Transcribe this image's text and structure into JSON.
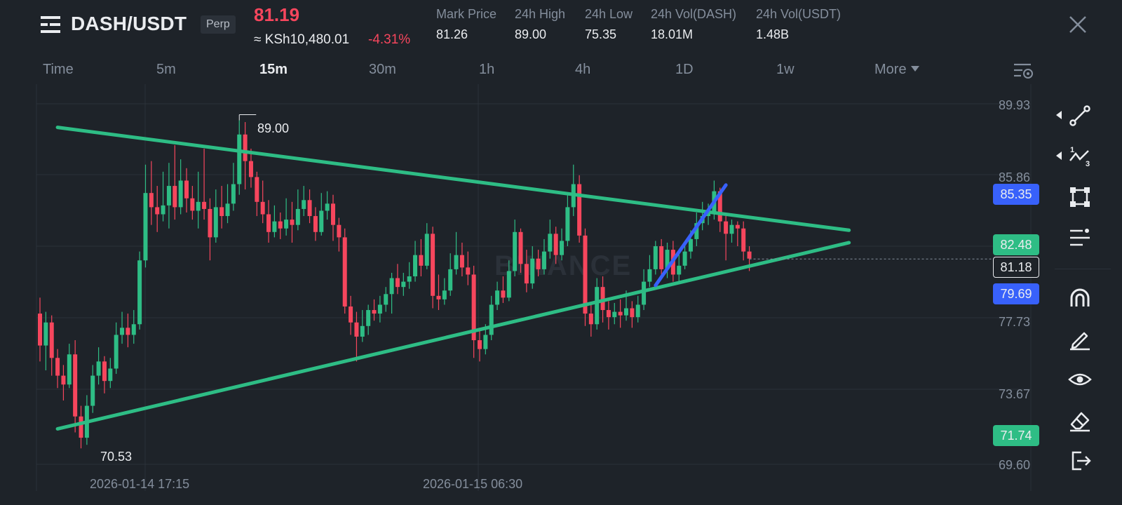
{
  "header": {
    "pair": "DASH/USDT",
    "contract_type": "Perp",
    "last_price": "81.19",
    "fiat_price": "≈ KSh10,480.01",
    "change_pct": "-4.31%",
    "stats": [
      {
        "label": "Mark Price",
        "value": "81.26"
      },
      {
        "label": "24h High",
        "value": "89.00"
      },
      {
        "label": "24h Low",
        "value": "75.35"
      },
      {
        "label": "24h Vol(DASH)",
        "value": "18.01M"
      },
      {
        "label": "24h Vol(USDT)",
        "value": "1.48B"
      }
    ]
  },
  "intervals": {
    "items": [
      "Time",
      "5m",
      "15m",
      "30m",
      "1h",
      "4h",
      "1D",
      "1w",
      "More"
    ],
    "active": "15m"
  },
  "watermark": "BINANCE",
  "colors": {
    "up": "#2ebd85",
    "down": "#f6465d",
    "accent_blue": "#3861fb",
    "background": "#1e2329",
    "grid": "#2b3139"
  },
  "price_axis": {
    "labels": [
      "89.93",
      "85.86",
      "77.73",
      "73.67",
      "69.60"
    ],
    "tags": {
      "blue_top": "85.35",
      "green_top": "82.48",
      "current": "81.18",
      "blue_bottom": "79.69",
      "green_bottom": "71.74"
    }
  },
  "time_axis": {
    "labels": [
      "2026-01-14 17:15",
      "2026-01-15 06:30"
    ]
  },
  "extremes": {
    "high": "89.00",
    "low": "70.53"
  },
  "chart_data": {
    "type": "candlestick",
    "title": "",
    "interval": "15m",
    "ylim": [
      69.0,
      90.5
    ],
    "high": 89.0,
    "low": 70.53,
    "current": 81.18,
    "candles": [
      [
        78.1,
        76.3,
        79.0,
        75.4
      ],
      [
        76.3,
        77.6,
        78.2,
        74.9
      ],
      [
        77.6,
        75.6,
        78.0,
        74.6
      ],
      [
        75.6,
        74.6,
        76.1,
        73.9
      ],
      [
        74.6,
        74.1,
        75.2,
        73.2
      ],
      [
        74.1,
        75.8,
        76.4,
        73.9
      ],
      [
        75.8,
        72.3,
        76.6,
        71.4
      ],
      [
        72.3,
        71.1,
        72.9,
        70.5
      ],
      [
        71.1,
        72.9,
        73.5,
        70.7
      ],
      [
        72.9,
        74.6,
        75.2,
        72.5
      ],
      [
        74.6,
        75.4,
        76.2,
        74.1
      ],
      [
        75.4,
        74.3,
        75.7,
        73.6
      ],
      [
        74.3,
        75.0,
        75.6,
        73.9
      ],
      [
        75.0,
        76.9,
        77.6,
        74.7
      ],
      [
        76.9,
        77.3,
        78.2,
        76.4
      ],
      [
        77.3,
        76.9,
        78.1,
        76.2
      ],
      [
        76.9,
        77.5,
        78.3,
        76.4
      ],
      [
        77.5,
        81.1,
        81.6,
        77.2
      ],
      [
        81.1,
        84.9,
        86.5,
        80.7
      ],
      [
        84.9,
        84.1,
        86.7,
        83.1
      ],
      [
        84.1,
        83.7,
        85.3,
        82.7
      ],
      [
        83.7,
        84.2,
        86.1,
        83.3
      ],
      [
        84.2,
        85.3,
        86.6,
        82.9
      ],
      [
        85.3,
        84.1,
        87.6,
        83.4
      ],
      [
        84.1,
        85.6,
        86.8,
        83.7
      ],
      [
        85.6,
        84.6,
        86.3,
        83.8
      ],
      [
        84.6,
        83.9,
        85.3,
        83.4
      ],
      [
        83.9,
        84.4,
        86.1,
        82.9
      ],
      [
        84.4,
        84.0,
        87.4,
        83.4
      ],
      [
        84.0,
        82.4,
        84.6,
        81.1
      ],
      [
        82.4,
        84.1,
        85.1,
        82.1
      ],
      [
        84.1,
        83.6,
        85.3,
        82.9
      ],
      [
        83.6,
        84.3,
        85.4,
        83.2
      ],
      [
        84.3,
        85.4,
        86.6,
        83.9
      ],
      [
        85.4,
        88.2,
        89.0,
        84.8
      ],
      [
        88.2,
        86.7,
        88.9,
        85.1
      ],
      [
        86.7,
        85.8,
        87.4,
        85.2
      ],
      [
        85.8,
        84.4,
        86.1,
        83.6
      ],
      [
        84.4,
        83.7,
        85.6,
        83.2
      ],
      [
        83.7,
        82.7,
        84.5,
        82.1
      ],
      [
        82.7,
        83.3,
        84.2,
        82.4
      ],
      [
        83.3,
        82.9,
        83.8,
        82.3
      ],
      [
        82.9,
        83.4,
        84.6,
        82.5
      ],
      [
        83.4,
        83.1,
        84.4,
        82.1
      ],
      [
        83.1,
        84.0,
        85.1,
        82.8
      ],
      [
        84.0,
        84.5,
        85.3,
        83.6
      ],
      [
        84.5,
        83.6,
        85.1,
        83.2
      ],
      [
        83.6,
        82.7,
        84.1,
        82.2
      ],
      [
        82.7,
        83.9,
        84.9,
        82.5
      ],
      [
        83.9,
        84.3,
        85.0,
        83.4
      ],
      [
        84.3,
        83.1,
        84.8,
        82.2
      ],
      [
        83.1,
        82.4,
        83.5,
        81.6
      ],
      [
        82.4,
        78.5,
        82.9,
        78.1
      ],
      [
        78.5,
        77.6,
        79.1,
        76.9
      ],
      [
        77.6,
        76.8,
        78.2,
        75.4
      ],
      [
        76.8,
        77.4,
        78.3,
        76.5
      ],
      [
        77.4,
        78.3,
        78.6,
        76.9
      ],
      [
        78.3,
        78.1,
        78.9,
        77.7
      ],
      [
        78.1,
        78.6,
        79.1,
        77.6
      ],
      [
        78.6,
        79.2,
        79.6,
        78.2
      ],
      [
        79.2,
        80.1,
        80.4,
        78.1
      ],
      [
        80.1,
        79.6,
        80.9,
        79.2
      ],
      [
        79.6,
        79.9,
        80.4,
        79.1
      ],
      [
        79.9,
        80.2,
        81.0,
        79.5
      ],
      [
        80.2,
        81.4,
        82.2,
        79.9
      ],
      [
        81.4,
        80.8,
        82.3,
        80.2
      ],
      [
        80.8,
        82.6,
        83.2,
        80.6
      ],
      [
        82.6,
        79.1,
        83.0,
        78.4
      ],
      [
        79.1,
        78.9,
        80.3,
        78.3
      ],
      [
        78.9,
        79.4,
        80.1,
        78.6
      ],
      [
        79.4,
        80.6,
        81.5,
        79.1
      ],
      [
        80.6,
        81.4,
        82.7,
        80.3
      ],
      [
        81.4,
        80.7,
        82.1,
        80.2
      ],
      [
        80.7,
        80.3,
        81.6,
        79.7
      ],
      [
        80.3,
        76.6,
        80.8,
        75.6
      ],
      [
        76.6,
        76.1,
        77.3,
        75.4
      ],
      [
        76.1,
        76.9,
        77.5,
        75.8
      ],
      [
        76.9,
        78.6,
        79.1,
        76.6
      ],
      [
        78.6,
        79.4,
        79.9,
        78.3
      ],
      [
        79.4,
        79.0,
        80.2,
        78.7
      ],
      [
        79.0,
        80.5,
        81.1,
        78.8
      ],
      [
        80.5,
        82.7,
        83.4,
        80.2
      ],
      [
        82.7,
        80.9,
        82.9,
        80.4
      ],
      [
        80.9,
        79.8,
        81.7,
        79.3
      ],
      [
        79.8,
        81.2,
        81.9,
        79.5
      ],
      [
        81.2,
        80.6,
        81.7,
        80.2
      ],
      [
        80.6,
        81.6,
        82.3,
        80.3
      ],
      [
        81.6,
        82.6,
        83.4,
        81.2
      ],
      [
        82.6,
        81.4,
        83.0,
        80.9
      ],
      [
        81.4,
        82.2,
        82.9,
        81.1
      ],
      [
        82.2,
        84.1,
        84.8,
        81.9
      ],
      [
        84.1,
        85.4,
        86.5,
        83.6
      ],
      [
        85.4,
        82.5,
        85.9,
        82.1
      ],
      [
        82.5,
        78.1,
        82.9,
        77.4
      ],
      [
        78.1,
        77.5,
        78.6,
        76.8
      ],
      [
        77.5,
        79.6,
        80.1,
        77.2
      ],
      [
        79.6,
        78.3,
        80.2,
        77.6
      ],
      [
        78.3,
        77.9,
        78.8,
        77.2
      ],
      [
        77.9,
        78.2,
        78.7,
        77.5
      ],
      [
        78.2,
        78.0,
        78.9,
        77.3
      ],
      [
        78.0,
        78.4,
        79.4,
        77.7
      ],
      [
        78.4,
        77.9,
        78.8,
        77.3
      ],
      [
        77.9,
        78.6,
        79.1,
        77.6
      ],
      [
        78.6,
        79.9,
        80.6,
        78.3
      ],
      [
        79.9,
        80.6,
        81.4,
        79.6
      ],
      [
        80.6,
        81.9,
        82.2,
        80.3
      ],
      [
        81.9,
        80.6,
        82.3,
        80.2
      ],
      [
        80.6,
        81.7,
        82.1,
        80.1
      ],
      [
        81.7,
        80.3,
        82.2,
        79.9
      ],
      [
        80.3,
        80.8,
        81.5,
        79.9
      ],
      [
        80.8,
        81.6,
        82.1,
        80.6
      ],
      [
        81.6,
        82.3,
        82.8,
        81.2
      ],
      [
        82.3,
        83.2,
        83.8,
        81.9
      ],
      [
        83.2,
        83.6,
        84.4,
        82.8
      ],
      [
        83.6,
        83.8,
        84.3,
        83.1
      ],
      [
        83.8,
        85.0,
        85.6,
        83.4
      ],
      [
        85.0,
        83.3,
        85.2,
        82.7
      ],
      [
        83.3,
        82.6,
        83.6,
        81.1
      ],
      [
        82.6,
        83.1,
        83.4,
        82.1
      ],
      [
        83.1,
        82.9,
        83.3,
        81.9
      ],
      [
        82.9,
        81.6,
        83.3,
        81.1
      ],
      [
        81.6,
        81.2,
        81.9,
        80.5
      ]
    ],
    "trend_lines": [
      {
        "name": "upper",
        "from": [
          3,
          88.6
        ],
        "to": [
          138,
          82.8
        ]
      },
      {
        "name": "lower",
        "from": [
          3,
          71.6
        ],
        "to": [
          138,
          82.1
        ]
      },
      {
        "name": "projection",
        "from": [
          105,
          79.69
        ],
        "to": [
          117,
          85.35
        ]
      }
    ]
  }
}
